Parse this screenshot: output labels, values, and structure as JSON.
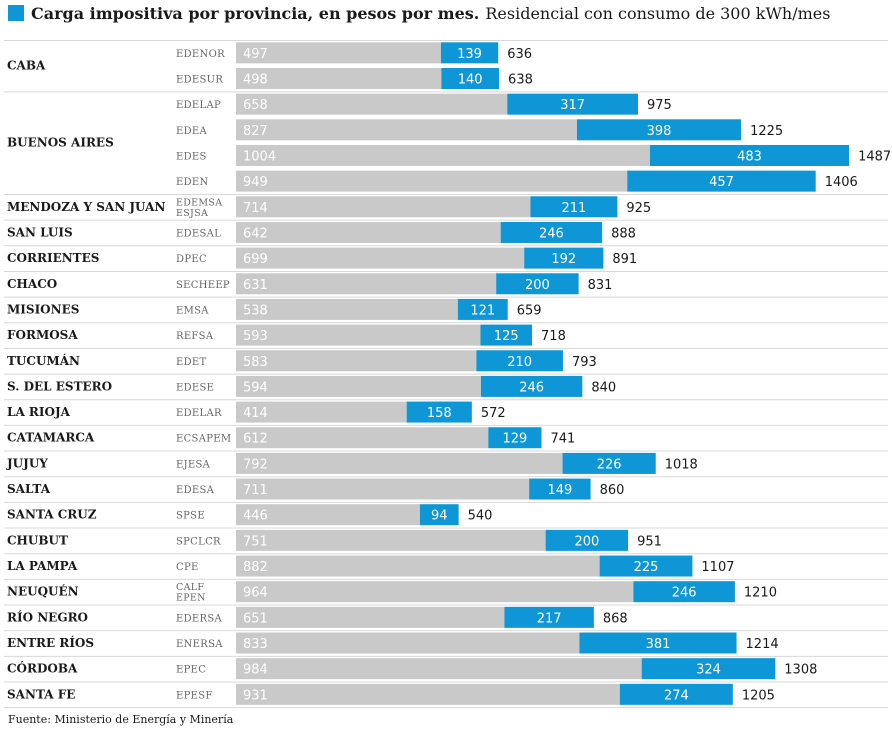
{
  "colors": {
    "gray": "#c9c9c9",
    "blue": "#0f96d6",
    "separator": "#d8d8d8"
  },
  "header": {
    "title": "Carga impositiva por provincia, en pesos por mes.",
    "subtitle": "Residencial con consumo de 300 kWh/mes"
  },
  "source": "Fuente: Ministerio de Energía y Minería",
  "chart_data": {
    "type": "bar",
    "orientation": "horizontal",
    "stacked": true,
    "groups": [
      {
        "province": "CABA",
        "rows": [
          {
            "company": "EDENOR",
            "base": 497,
            "tax": 139,
            "total": 636
          },
          {
            "company": "EDESUR",
            "base": 498,
            "tax": 140,
            "total": 638
          }
        ]
      },
      {
        "province": "BUENOS AIRES",
        "rows": [
          {
            "company": "EDELAP",
            "base": 658,
            "tax": 317,
            "total": 975
          },
          {
            "company": "EDEA",
            "base": 827,
            "tax": 398,
            "total": 1225
          },
          {
            "company": "EDES",
            "base": 1004,
            "tax": 483,
            "total": 1487
          },
          {
            "company": "EDEN",
            "base": 949,
            "tax": 457,
            "total": 1406
          }
        ]
      },
      {
        "province": "MENDOZA Y SAN JUAN",
        "rows": [
          {
            "company": "EDEMSA\nESJSA",
            "base": 714,
            "tax": 211,
            "total": 925
          }
        ]
      },
      {
        "province": "SAN LUIS",
        "rows": [
          {
            "company": "EDESAL",
            "base": 642,
            "tax": 246,
            "total": 888
          }
        ]
      },
      {
        "province": "CORRIENTES",
        "rows": [
          {
            "company": "DPEC",
            "base": 699,
            "tax": 192,
            "total": 891
          }
        ]
      },
      {
        "province": "CHACO",
        "rows": [
          {
            "company": "SECHEEP",
            "base": 631,
            "tax": 200,
            "total": 831
          }
        ]
      },
      {
        "province": "MISIONES",
        "rows": [
          {
            "company": "EMSA",
            "base": 538,
            "tax": 121,
            "total": 659
          }
        ]
      },
      {
        "province": "FORMOSA",
        "rows": [
          {
            "company": "REFSA",
            "base": 593,
            "tax": 125,
            "total": 718
          }
        ]
      },
      {
        "province": "TUCUMÁN",
        "rows": [
          {
            "company": "EDET",
            "base": 583,
            "tax": 210,
            "total": 793
          }
        ]
      },
      {
        "province": "S. DEL ESTERO",
        "rows": [
          {
            "company": "EDESE",
            "base": 594,
            "tax": 246,
            "total": 840
          }
        ]
      },
      {
        "province": "LA RIOJA",
        "rows": [
          {
            "company": "EDELAR",
            "base": 414,
            "tax": 158,
            "total": 572
          }
        ]
      },
      {
        "province": "CATAMARCA",
        "rows": [
          {
            "company": "ECSAPEM",
            "base": 612,
            "tax": 129,
            "total": 741
          }
        ]
      },
      {
        "province": "JUJUY",
        "rows": [
          {
            "company": "EJESA",
            "base": 792,
            "tax": 226,
            "total": 1018
          }
        ]
      },
      {
        "province": "SALTA",
        "rows": [
          {
            "company": "EDESA",
            "base": 711,
            "tax": 149,
            "total": 860
          }
        ]
      },
      {
        "province": "SANTA CRUZ",
        "rows": [
          {
            "company": "SPSE",
            "base": 446,
            "tax": 94,
            "total": 540
          }
        ]
      },
      {
        "province": "CHUBUT",
        "rows": [
          {
            "company": "SPCLCR",
            "base": 751,
            "tax": 200,
            "total": 951
          }
        ]
      },
      {
        "province": "LA PAMPA",
        "rows": [
          {
            "company": "CPE",
            "base": 882,
            "tax": 225,
            "total": 1107
          }
        ]
      },
      {
        "province": "NEUQUÉN",
        "rows": [
          {
            "company": "CALF\nEPEN",
            "base": 964,
            "tax": 246,
            "total": 1210
          }
        ]
      },
      {
        "province": "RÍO NEGRO",
        "rows": [
          {
            "company": "EDERSA",
            "base": 651,
            "tax": 217,
            "total": 868
          }
        ]
      },
      {
        "province": "ENTRE RÍOS",
        "rows": [
          {
            "company": "ENERSA",
            "base": 833,
            "tax": 381,
            "total": 1214
          }
        ]
      },
      {
        "province": "CÓRDOBA",
        "rows": [
          {
            "company": "EPEC",
            "base": 984,
            "tax": 324,
            "total": 1308
          }
        ]
      },
      {
        "province": "SANTA FE",
        "rows": [
          {
            "company": "EPESF",
            "base": 931,
            "tax": 274,
            "total": 1205
          }
        ]
      }
    ]
  }
}
